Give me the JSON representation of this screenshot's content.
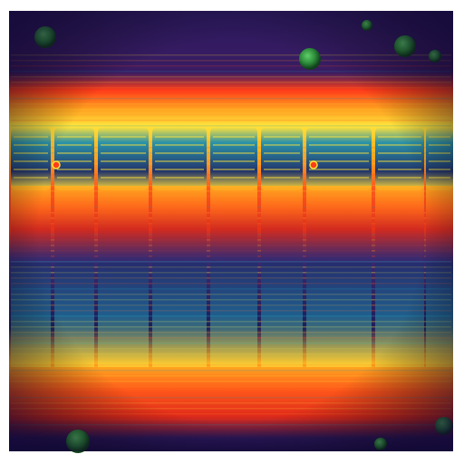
{
  "image": {
    "subject": "",
    "palette": {
      "background": "#2a1758",
      "deep_indigo": "#1c0f4a",
      "hot_red": "#ff3b1a",
      "orange": "#ff8a1c",
      "yellow": "#ffe23a",
      "teal": "#1f8fb0",
      "navy": "#16306e",
      "green_orb": "#2c8a3a"
    },
    "decorations": {
      "orb_count": 8,
      "column_count": 9
    }
  }
}
